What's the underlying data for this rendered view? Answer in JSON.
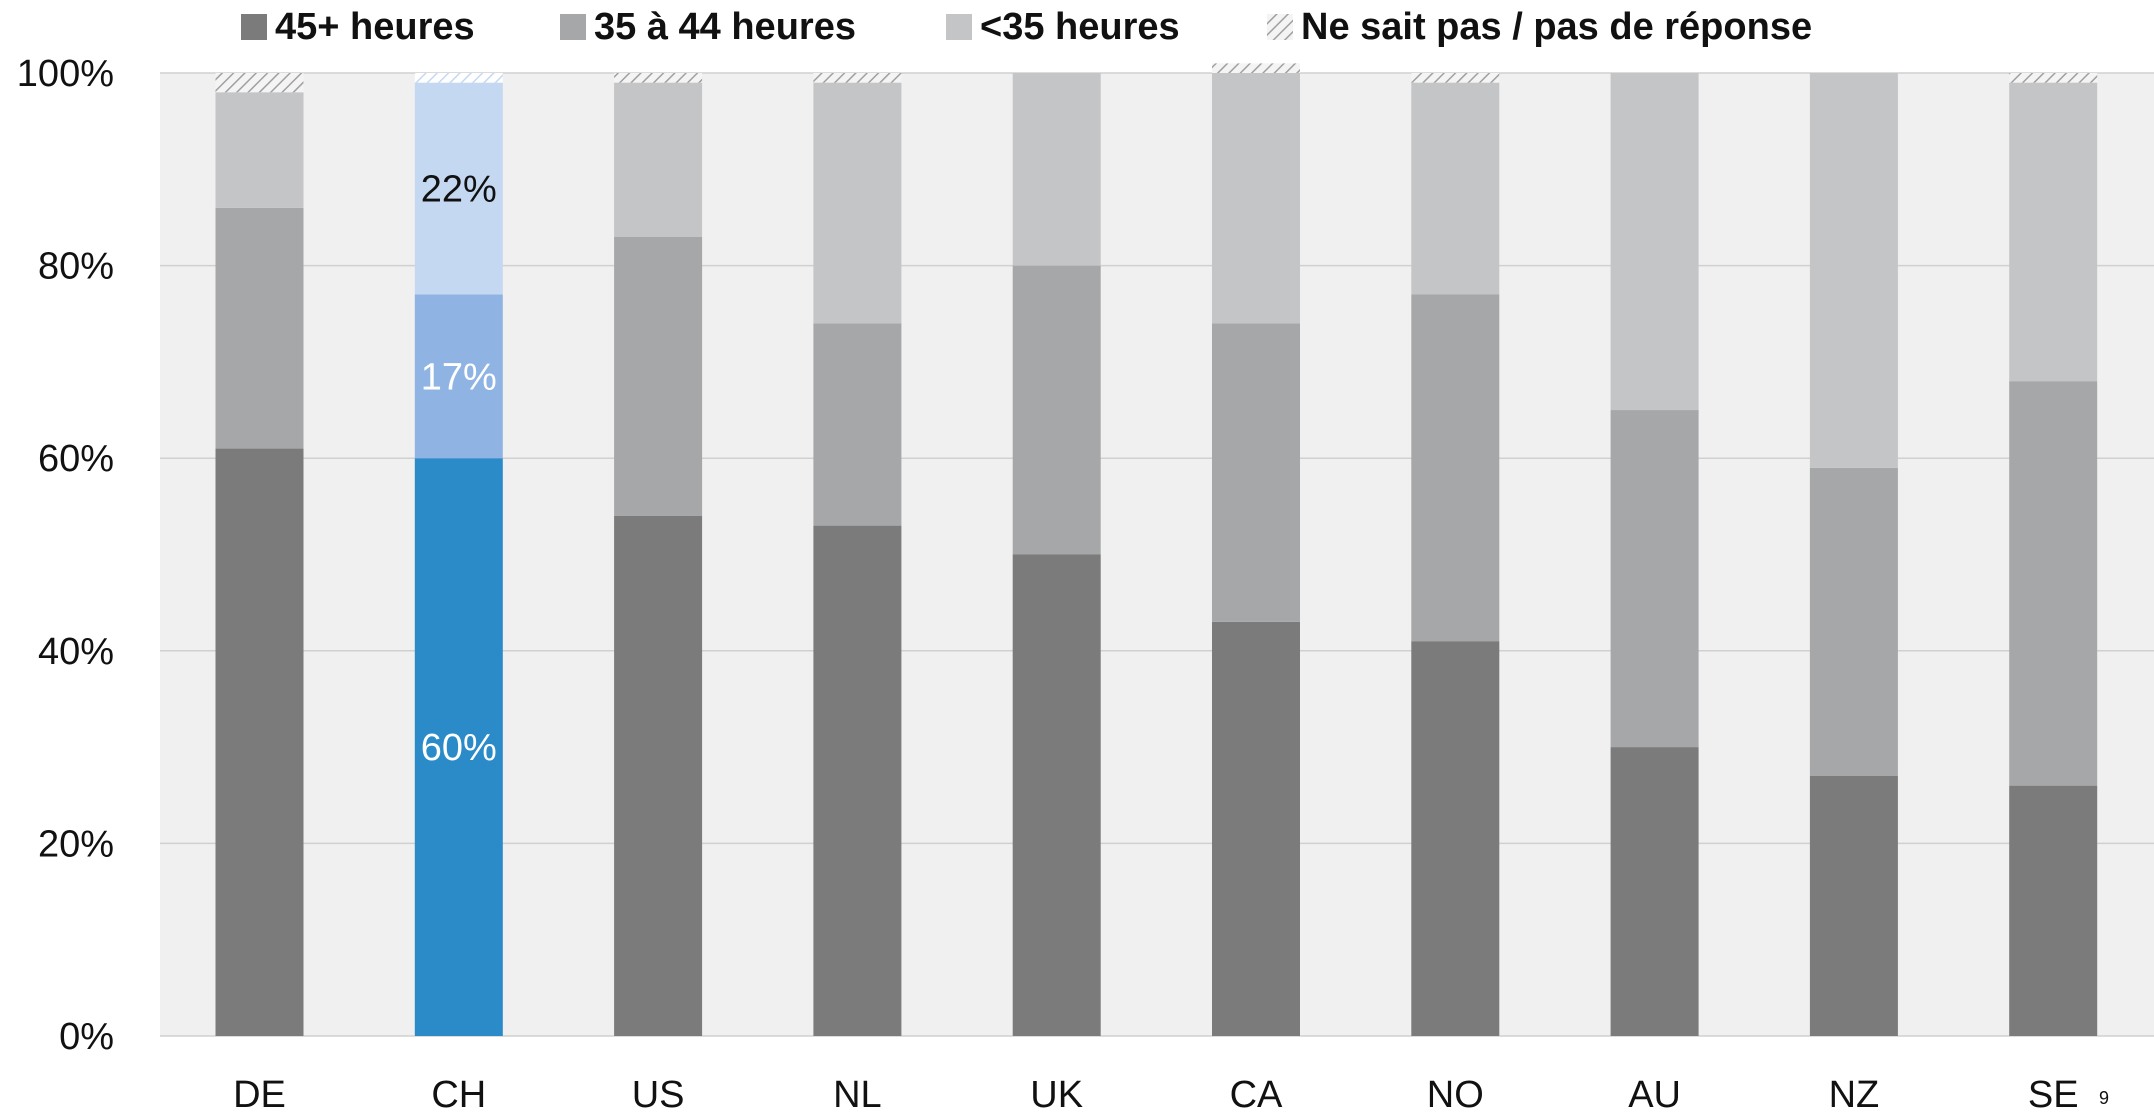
{
  "chart_data": {
    "type": "bar",
    "stacked": true,
    "categories": [
      "DE",
      "CH",
      "US",
      "NL",
      "UK",
      "CA",
      "NO",
      "AU",
      "NZ",
      "SE"
    ],
    "series": [
      {
        "name": "45+ heures",
        "values": [
          61,
          60,
          54,
          53,
          50,
          43,
          41,
          30,
          27,
          26
        ],
        "color": "#7b7b7c"
      },
      {
        "name": "35 à 44 heures",
        "values": [
          25,
          17,
          29,
          21,
          30,
          31,
          36,
          35,
          32,
          42
        ],
        "color": "#a6a7a9"
      },
      {
        "name": "<35 heures",
        "values": [
          12,
          22,
          16,
          25,
          20,
          26,
          22,
          35,
          41,
          31
        ],
        "color": "#c4c5c7"
      },
      {
        "name": "Ne sait pas / pas de réponse",
        "values": [
          2,
          1,
          1,
          1,
          0,
          1,
          1,
          0,
          0,
          1
        ],
        "color": "#d9d9d9",
        "pattern": "hatch"
      }
    ],
    "highlight": {
      "category": "CH",
      "colors": [
        "#2a8bc8",
        "#8fb4e3",
        "#c5d8f2",
        "#e6eef9"
      ],
      "labels": [
        "60%",
        "17%",
        "22%"
      ],
      "label_colors": [
        "#ffffff",
        "#ffffff",
        "#111111"
      ]
    },
    "ylim": [
      0,
      100
    ],
    "yticks": [
      "0%",
      "20%",
      "40%",
      "60%",
      "80%",
      "100%"
    ],
    "grid": true,
    "legend_position": "top",
    "plot_background": "#f0f0f0",
    "page_number": "9"
  }
}
